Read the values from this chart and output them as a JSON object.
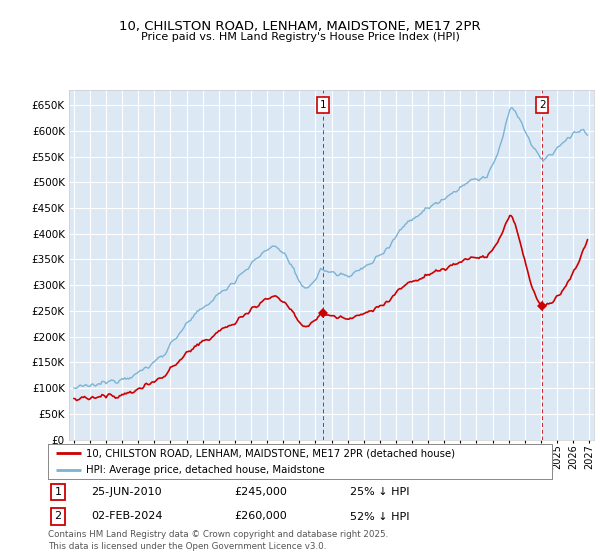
{
  "title": "10, CHILSTON ROAD, LENHAM, MAIDSTONE, ME17 2PR",
  "subtitle": "Price paid vs. HM Land Registry's House Price Index (HPI)",
  "legend_line1": "10, CHILSTON ROAD, LENHAM, MAIDSTONE, ME17 2PR (detached house)",
  "legend_line2": "HPI: Average price, detached house, Maidstone",
  "annotation1_date": "25-JUN-2010",
  "annotation1_price": "£245,000",
  "annotation1_hpi": "25% ↓ HPI",
  "annotation2_date": "02-FEB-2024",
  "annotation2_price": "£260,000",
  "annotation2_hpi": "52% ↓ HPI",
  "footnote": "Contains HM Land Registry data © Crown copyright and database right 2025.\nThis data is licensed under the Open Government Licence v3.0.",
  "hpi_color": "#7ab3d4",
  "price_color": "#cc0000",
  "annotation_color": "#cc0000",
  "background_color": "#dce9f5",
  "grid_color": "#ffffff",
  "ylim": [
    0,
    680000
  ],
  "ytick_step": 50000,
  "xmin": 1994.7,
  "xmax": 2027.3,
  "sale1_x": 2010.48,
  "sale1_y": 245000,
  "sale2_x": 2024.08,
  "sale2_y": 260000
}
